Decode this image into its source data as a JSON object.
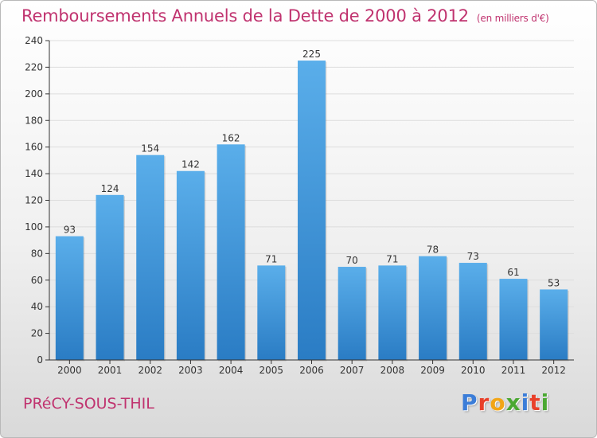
{
  "header": {
    "title": "Remboursements Annuels de la Dette de 2000 à 2012",
    "unit": "(en milliers d'€)"
  },
  "footer": {
    "city": "PRéCY-SOUS-THIL",
    "logo_letters": [
      "P",
      "r",
      "o",
      "x",
      "i",
      "t",
      "i"
    ],
    "logo_colors": [
      "#3b7dd8",
      "#e8402a",
      "#f2a516",
      "#4aa832",
      "#3b7dd8",
      "#e8402a",
      "#4aa832"
    ]
  },
  "colors": {
    "title": "#c0336f",
    "bar_top": "#5aaeea",
    "bar_bottom": "#2a7cc4",
    "grid": "#dddddd",
    "axis": "#333333"
  },
  "chart_data": {
    "type": "bar",
    "title": "Remboursements Annuels de la Dette de 2000 à 2012",
    "xlabel": "",
    "ylabel": "",
    "categories": [
      "2000",
      "2001",
      "2002",
      "2003",
      "2004",
      "2005",
      "2006",
      "2007",
      "2008",
      "2009",
      "2010",
      "2011",
      "2012"
    ],
    "values": [
      93,
      124,
      154,
      142,
      162,
      71,
      225,
      70,
      71,
      78,
      73,
      61,
      53
    ],
    "ylim": [
      0,
      240
    ],
    "yticks": [
      0,
      20,
      40,
      60,
      80,
      100,
      120,
      140,
      160,
      180,
      200,
      220,
      240
    ],
    "grid": true
  }
}
